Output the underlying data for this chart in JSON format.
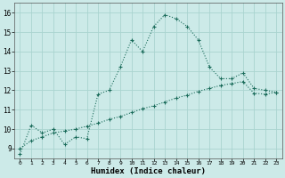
{
  "xlabel": "Humidex (Indice chaleur)",
  "ylabel": "",
  "bg_color": "#cceae8",
  "line_color": "#1a6b5a",
  "grid_color": "#aad4d0",
  "xlim": [
    -0.5,
    23.5
  ],
  "ylim": [
    8.5,
    16.5
  ],
  "xticks": [
    0,
    1,
    2,
    3,
    4,
    5,
    6,
    7,
    8,
    9,
    10,
    11,
    12,
    13,
    14,
    15,
    16,
    17,
    18,
    19,
    20,
    21,
    22,
    23
  ],
  "yticks": [
    9,
    10,
    11,
    12,
    13,
    14,
    15,
    16
  ],
  "line1_x": [
    0,
    1,
    2,
    3,
    4,
    5,
    6,
    7,
    8,
    9,
    10,
    11,
    12,
    13,
    14,
    15,
    16,
    17,
    18,
    19,
    20,
    21,
    22,
    23
  ],
  "line1_y": [
    8.7,
    10.2,
    9.8,
    10.0,
    9.2,
    9.6,
    9.5,
    11.8,
    12.0,
    13.2,
    14.6,
    14.0,
    15.3,
    15.9,
    15.7,
    15.3,
    14.6,
    13.2,
    12.6,
    12.6,
    12.9,
    12.1,
    12.0,
    11.9
  ],
  "line2_x": [
    0,
    1,
    2,
    3,
    4,
    5,
    6,
    7,
    8,
    9,
    10,
    11,
    12,
    13,
    14,
    15,
    16,
    17,
    18,
    19,
    20,
    21,
    22,
    23
  ],
  "line2_y": [
    9.0,
    9.4,
    9.6,
    9.8,
    9.9,
    10.0,
    10.15,
    10.3,
    10.5,
    10.65,
    10.85,
    11.05,
    11.2,
    11.4,
    11.6,
    11.75,
    11.95,
    12.1,
    12.25,
    12.35,
    12.45,
    11.85,
    11.8,
    11.9
  ]
}
